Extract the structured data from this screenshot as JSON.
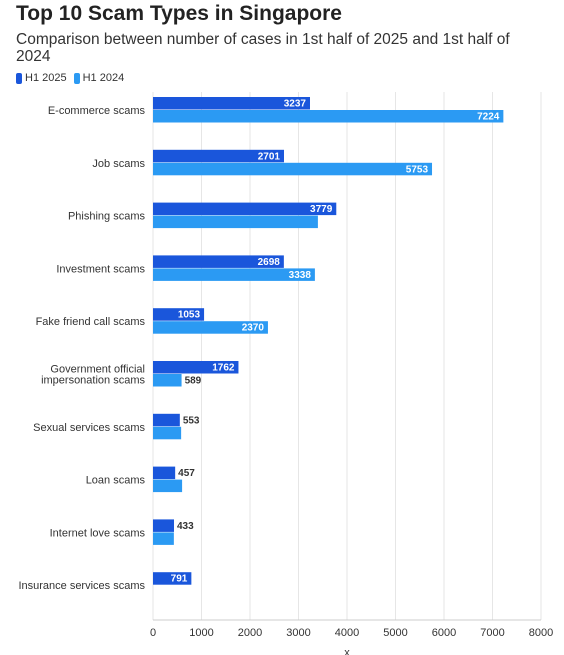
{
  "chart_data": {
    "type": "bar",
    "orientation": "horizontal",
    "title": "Top 10 Scam Types in Singapore",
    "subtitle": "Comparison between number of cases in 1st half of 2025 and 1st half of 2024",
    "categories": [
      "E-commerce scams",
      "Job scams",
      "Phishing scams",
      "Investment scams",
      "Fake friend call scams",
      "Government official impersonation scams",
      "Sexual services scams",
      "Loan scams",
      "Internet love scams",
      "Insurance services scams"
    ],
    "series": [
      {
        "name": "H1 2025",
        "color": "#1a56db",
        "values": [
          3237,
          2701,
          3779,
          2698,
          1053,
          1762,
          553,
          457,
          433,
          791
        ],
        "labels": [
          "3237",
          "2701",
          "3779",
          "2698",
          "1053",
          "1762",
          "553",
          "457",
          "433",
          "791"
        ]
      },
      {
        "name": "H1 2024",
        "color": "#2b9af3",
        "values": [
          7224,
          5753,
          3400,
          3338,
          2370,
          589,
          580,
          600,
          430,
          0
        ],
        "labels": [
          "7224",
          "5753",
          "",
          "3338",
          "2370",
          "589",
          "",
          "",
          "",
          ""
        ]
      }
    ],
    "xlim": [
      0,
      8000
    ],
    "xticks": [
      "0",
      "1000",
      "2000",
      "3000",
      "4000",
      "5000",
      "6000",
      "7000",
      "8000"
    ],
    "xlabel": "x",
    "ylabel": "",
    "legend_position": "top-left",
    "grid": "vertical"
  }
}
